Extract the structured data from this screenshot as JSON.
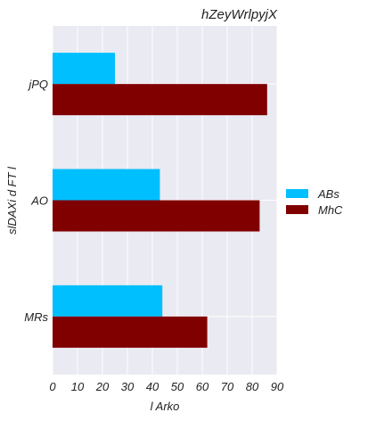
{
  "chart_data": {
    "type": "bar",
    "orientation": "horizontal",
    "title": "hZeyWrlpyjX",
    "xlabel": "l Arko",
    "ylabel": "slDAXi  d FT l",
    "categories": [
      "jPQ",
      "AO",
      "MRs"
    ],
    "series": [
      {
        "name": "ABs",
        "values": [
          25,
          43,
          44
        ],
        "color": "#00bfff"
      },
      {
        "name": "MhC",
        "values": [
          86,
          83,
          62
        ],
        "color": "#800000"
      }
    ],
    "xlim": [
      0,
      90
    ],
    "xticks": [
      0,
      10,
      20,
      30,
      40,
      50,
      60,
      70,
      80,
      90
    ],
    "grid": true,
    "legend_position": "right",
    "background": "#eaeaf2"
  }
}
